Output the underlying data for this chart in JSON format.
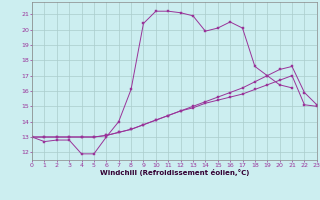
{
  "xlabel": "Windchill (Refroidissement éolien,°C)",
  "background_color": "#cceef0",
  "grid_color": "#aacccc",
  "line_color": "#993399",
  "xlim": [
    0,
    23
  ],
  "ylim": [
    11.5,
    21.8
  ],
  "xticks": [
    0,
    1,
    2,
    3,
    4,
    5,
    6,
    7,
    8,
    9,
    10,
    11,
    12,
    13,
    14,
    15,
    16,
    17,
    18,
    19,
    20,
    21,
    22,
    23
  ],
  "yticks": [
    12,
    13,
    14,
    15,
    16,
    17,
    18,
    19,
    20,
    21
  ],
  "series1_y": [
    13.0,
    12.7,
    12.8,
    12.8,
    11.9,
    11.9,
    13.0,
    14.0,
    16.1,
    20.4,
    21.2,
    21.2,
    21.1,
    20.9,
    19.9,
    20.1,
    20.5,
    20.1,
    17.6,
    17.0,
    16.4,
    16.2
  ],
  "series2_y": [
    13.0,
    13.0,
    13.0,
    13.0,
    13.0,
    13.0,
    13.1,
    13.3,
    13.5,
    13.8,
    14.1,
    14.4,
    14.7,
    14.9,
    15.2,
    15.4,
    15.6,
    15.8,
    16.1,
    16.4,
    16.7,
    17.0,
    15.1,
    15.0
  ],
  "series3_y": [
    13.0,
    13.0,
    13.0,
    13.0,
    13.0,
    13.0,
    13.1,
    13.3,
    13.5,
    13.8,
    14.1,
    14.4,
    14.7,
    15.0,
    15.3,
    15.6,
    15.9,
    16.2,
    16.6,
    17.0,
    17.4,
    17.6,
    15.9,
    15.1
  ]
}
